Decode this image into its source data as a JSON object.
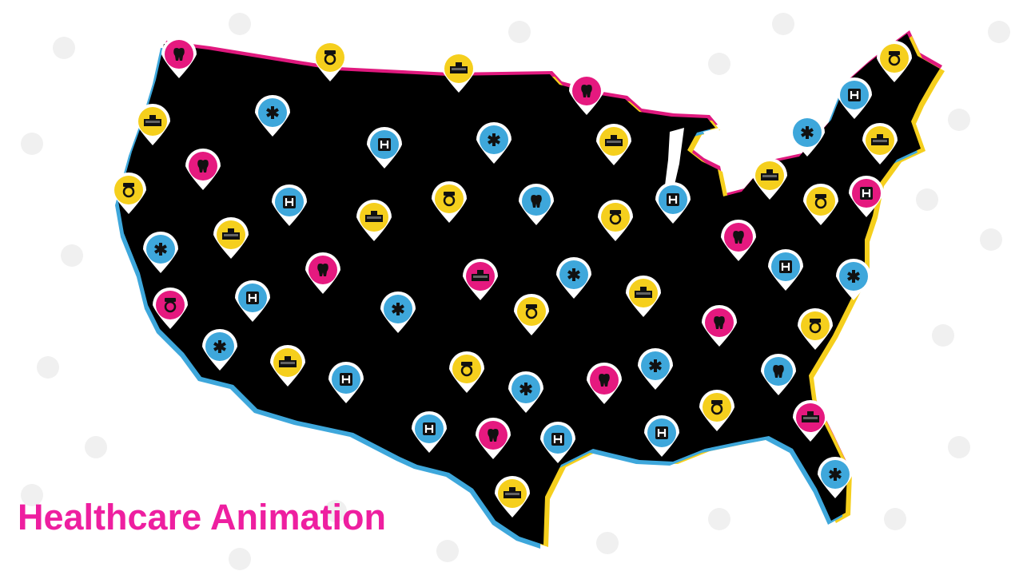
{
  "title": "Healthcare Animation",
  "colors": {
    "title": "#ee1fa0",
    "map": "#000000",
    "pink": "#e5197f",
    "yellow": "#f5cf1d",
    "blue": "#3ea7db",
    "shadow_pink": "#e0197e",
    "shadow_blue": "#3ea7db",
    "shadow_yellow": "#f5cf1d"
  },
  "pin_types": {
    "tooth": "tooth-icon",
    "nurse": "nurse-icon",
    "star": "star-of-life-icon",
    "hospital": "hospital-building-icon",
    "h": "hospital-h-icon"
  },
  "pins": [
    {
      "color": "pink",
      "icon": "tooth"
    },
    {
      "color": "yellow",
      "icon": "nurse"
    },
    {
      "color": "yellow",
      "icon": "hospital"
    },
    {
      "color": "pink",
      "icon": "tooth"
    },
    {
      "color": "yellow",
      "icon": "nurse"
    },
    {
      "color": "yellow",
      "icon": "hospital"
    },
    {
      "color": "blue",
      "icon": "star"
    },
    {
      "color": "blue",
      "icon": "h"
    },
    {
      "color": "blue",
      "icon": "star"
    },
    {
      "color": "yellow",
      "icon": "hospital"
    },
    {
      "color": "blue",
      "icon": "h"
    },
    {
      "color": "blue",
      "icon": "star"
    },
    {
      "color": "yellow",
      "icon": "hospital"
    },
    {
      "color": "yellow",
      "icon": "nurse"
    },
    {
      "color": "pink",
      "icon": "tooth"
    },
    {
      "color": "blue",
      "icon": "h"
    },
    {
      "color": "yellow",
      "icon": "hospital"
    },
    {
      "color": "yellow",
      "icon": "nurse"
    },
    {
      "color": "blue",
      "icon": "tooth"
    },
    {
      "color": "yellow",
      "icon": "nurse"
    },
    {
      "color": "blue",
      "icon": "h"
    },
    {
      "color": "yellow",
      "icon": "hospital"
    },
    {
      "color": "yellow",
      "icon": "nurse"
    },
    {
      "color": "pink",
      "icon": "h"
    },
    {
      "color": "blue",
      "icon": "star"
    },
    {
      "color": "yellow",
      "icon": "hospital"
    },
    {
      "color": "pink",
      "icon": "tooth"
    },
    {
      "color": "pink",
      "icon": "hospital"
    },
    {
      "color": "blue",
      "icon": "star"
    },
    {
      "color": "pink",
      "icon": "tooth"
    },
    {
      "color": "blue",
      "icon": "h"
    },
    {
      "color": "blue",
      "icon": "star"
    },
    {
      "color": "pink",
      "icon": "nurse"
    },
    {
      "color": "blue",
      "icon": "h"
    },
    {
      "color": "blue",
      "icon": "star"
    },
    {
      "color": "yellow",
      "icon": "nurse"
    },
    {
      "color": "yellow",
      "icon": "hospital"
    },
    {
      "color": "pink",
      "icon": "tooth"
    },
    {
      "color": "yellow",
      "icon": "nurse"
    },
    {
      "color": "blue",
      "icon": "star"
    },
    {
      "color": "yellow",
      "icon": "hospital"
    },
    {
      "color": "blue",
      "icon": "h"
    },
    {
      "color": "yellow",
      "icon": "nurse"
    },
    {
      "color": "blue",
      "icon": "star"
    },
    {
      "color": "pink",
      "icon": "tooth"
    },
    {
      "color": "blue",
      "icon": "star"
    },
    {
      "color": "blue",
      "icon": "tooth"
    },
    {
      "color": "blue",
      "icon": "h"
    },
    {
      "color": "pink",
      "icon": "tooth"
    },
    {
      "color": "blue",
      "icon": "h"
    },
    {
      "color": "blue",
      "icon": "h"
    },
    {
      "color": "yellow",
      "icon": "nurse"
    },
    {
      "color": "pink",
      "icon": "hospital"
    },
    {
      "color": "blue",
      "icon": "star"
    },
    {
      "color": "yellow",
      "icon": "hospital"
    }
  ]
}
